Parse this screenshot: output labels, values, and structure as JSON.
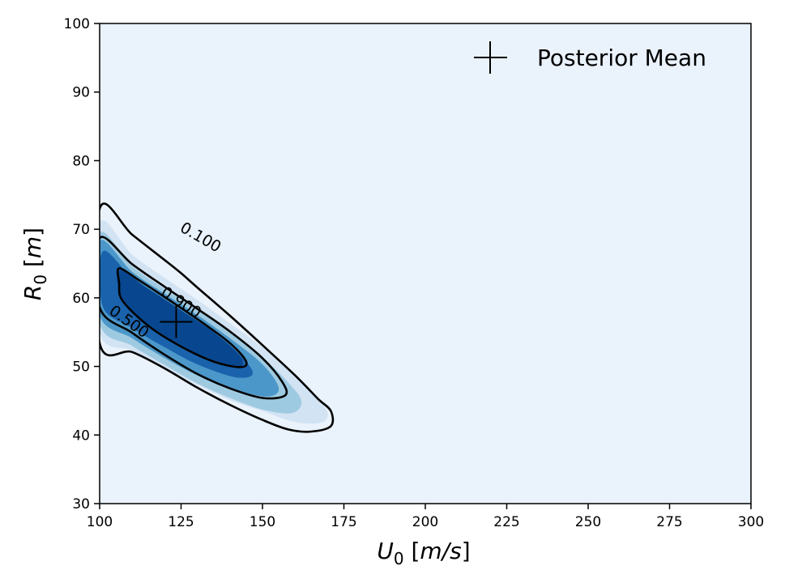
{
  "chart_data": {
    "type": "contour",
    "title": "",
    "xlabel": {
      "var": "U",
      "sub": "0",
      "unit": "m/s"
    },
    "ylabel": {
      "var": "R",
      "sub": "0",
      "unit": "m"
    },
    "xlim": [
      100,
      300
    ],
    "ylim": [
      30,
      100
    ],
    "xticks": [
      100,
      125,
      150,
      175,
      200,
      225,
      250,
      275,
      300
    ],
    "yticks": [
      30,
      40,
      50,
      60,
      70,
      80,
      90,
      100
    ],
    "grid": false,
    "legend": {
      "position": "top-right",
      "entries": [
        {
          "label": "Posterior Mean",
          "marker": "plus"
        }
      ]
    },
    "posterior_mean": {
      "x": 123.5,
      "y": 56.5
    },
    "fill_colors": [
      "#eaf2fb",
      "#d2e3f3",
      "#9ecae1",
      "#4c97c9",
      "#1a62ab",
      "#08478f"
    ],
    "filled_regions": [
      {
        "level": 1,
        "points": [
          [
            100,
            70.9
          ],
          [
            110,
            66.3
          ],
          [
            120,
            62.9
          ],
          [
            130,
            59.7
          ],
          [
            140,
            56.3
          ],
          [
            150,
            52.8
          ],
          [
            160,
            48.9
          ],
          [
            167,
            45.4
          ],
          [
            170,
            43.2
          ],
          [
            168,
            41.8
          ],
          [
            160,
            41.9
          ],
          [
            150,
            43.5
          ],
          [
            140,
            45.1
          ],
          [
            130,
            47.3
          ],
          [
            120,
            49.7
          ],
          [
            110,
            52.3
          ],
          [
            100,
            55.0
          ]
        ]
      },
      {
        "level": 2,
        "points": [
          [
            100,
            69.4
          ],
          [
            110,
            64.6
          ],
          [
            120,
            61.3
          ],
          [
            130,
            58.2
          ],
          [
            140,
            54.9
          ],
          [
            150,
            51.3
          ],
          [
            158,
            47.6
          ],
          [
            162,
            44.9
          ],
          [
            159,
            43.2
          ],
          [
            150,
            43.7
          ],
          [
            140,
            45.4
          ],
          [
            130,
            47.5
          ],
          [
            120,
            50.2
          ],
          [
            110,
            53.0
          ],
          [
            100,
            56.2
          ]
        ]
      },
      {
        "level": 3,
        "points": [
          [
            100,
            68.3
          ],
          [
            110,
            63.8
          ],
          [
            120,
            60.6
          ],
          [
            130,
            57.5
          ],
          [
            140,
            54.1
          ],
          [
            150,
            50.3
          ],
          [
            155,
            46.8
          ],
          [
            151,
            45.6
          ],
          [
            140,
            46.8
          ],
          [
            130,
            48.7
          ],
          [
            120,
            51.2
          ],
          [
            110,
            54.1
          ],
          [
            100,
            57.4
          ]
        ]
      },
      {
        "level": 4,
        "points": [
          [
            101,
            66.8
          ],
          [
            110,
            62.9
          ],
          [
            120,
            59.7
          ],
          [
            130,
            56.5
          ],
          [
            140,
            53.1
          ],
          [
            147,
            49.2
          ],
          [
            142,
            48.4
          ],
          [
            130,
            50.3
          ],
          [
            120,
            52.8
          ],
          [
            110,
            55.6
          ],
          [
            101,
            58.7
          ]
        ]
      },
      {
        "level": 5,
        "points": [
          [
            106,
            64.0
          ],
          [
            115,
            61.3
          ],
          [
            125,
            58.2
          ],
          [
            135,
            55.0
          ],
          [
            143,
            51.6
          ],
          [
            143,
            49.9
          ],
          [
            135,
            50.7
          ],
          [
            125,
            53.1
          ],
          [
            115,
            55.9
          ],
          [
            107,
            59.6
          ]
        ]
      }
    ],
    "contour_lines": [
      {
        "level": "0.100",
        "points": [
          [
            100,
            73.0
          ],
          [
            110,
            69.2
          ],
          [
            120,
            65.5
          ],
          [
            125,
            63.6
          ],
          [
            130,
            61.5
          ],
          [
            140,
            57.4
          ],
          [
            150,
            53.1
          ],
          [
            160,
            48.7
          ],
          [
            167,
            45.3
          ],
          [
            171,
            43.5
          ],
          [
            171,
            41.3
          ],
          [
            165,
            40.5
          ],
          [
            158,
            40.8
          ],
          [
            150,
            42.2
          ],
          [
            140,
            44.4
          ],
          [
            130,
            46.9
          ],
          [
            120,
            49.7
          ],
          [
            110,
            52.1
          ],
          [
            100,
            53.4
          ]
        ]
      },
      {
        "level": "0.500",
        "points": [
          [
            100,
            68.7
          ],
          [
            110,
            64.9
          ],
          [
            120,
            61.6
          ],
          [
            130,
            58.4
          ],
          [
            140,
            55.1
          ],
          [
            150,
            51.2
          ],
          [
            156,
            47.8
          ],
          [
            157,
            45.8
          ],
          [
            150,
            45.4
          ],
          [
            140,
            46.8
          ],
          [
            130,
            48.9
          ],
          [
            120,
            51.7
          ],
          [
            110,
            54.9
          ],
          [
            100,
            58.6
          ]
        ]
      },
      {
        "level": "0.900",
        "points": [
          [
            106,
            64.3
          ],
          [
            112,
            62.6
          ],
          [
            120,
            60.1
          ],
          [
            130,
            56.9
          ],
          [
            140,
            53.4
          ],
          [
            145,
            50.7
          ],
          [
            143,
            49.9
          ],
          [
            135,
            50.7
          ],
          [
            125,
            52.9
          ],
          [
            115,
            55.9
          ],
          [
            107,
            59.6
          ],
          [
            106,
            62.2
          ]
        ]
      }
    ],
    "contour_labels": [
      {
        "text": "0.100",
        "x": 131,
        "y": 68.8,
        "angle": 30
      },
      {
        "text": "0.900",
        "x": 125,
        "y": 59.3,
        "angle": 33
      },
      {
        "text": "0.500",
        "x": 109,
        "y": 56.5,
        "angle": 35
      }
    ]
  }
}
